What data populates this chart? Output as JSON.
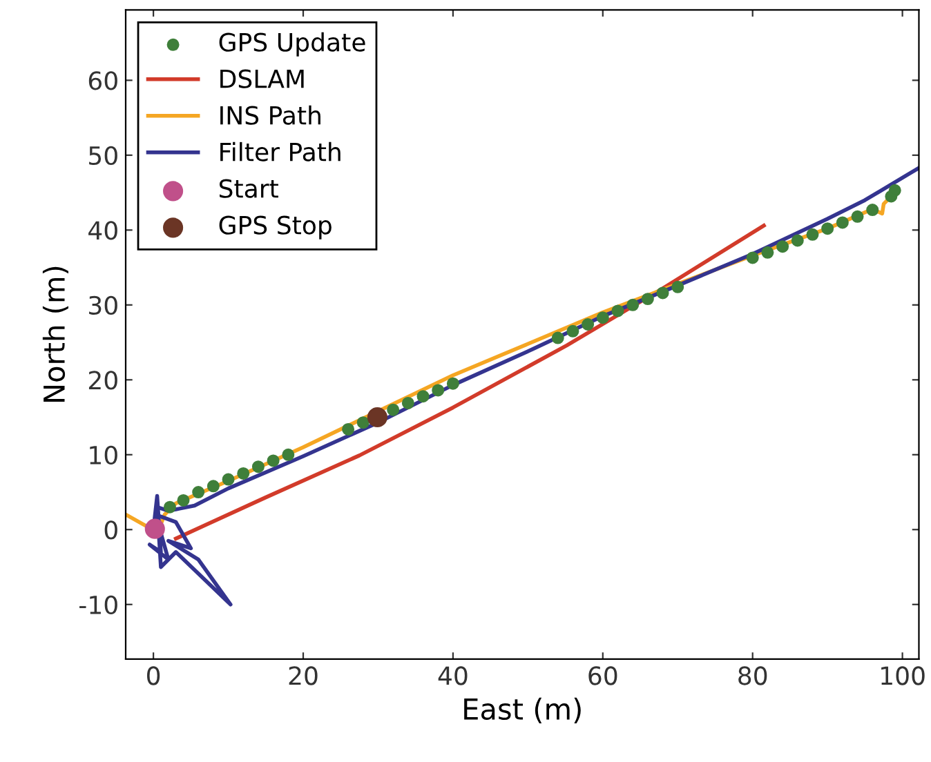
{
  "chart_data": {
    "type": "line",
    "xlabel": "East (m)",
    "ylabel": "North (m)",
    "xlim": [
      -3.7,
      102.2
    ],
    "ylim": [
      -17.3,
      69.4
    ],
    "xticks": [
      0,
      20,
      40,
      60,
      80,
      100
    ],
    "yticks": [
      -10,
      0,
      10,
      20,
      30,
      40,
      50,
      60
    ],
    "legend": "top left",
    "grid": false,
    "series": [
      {
        "name": "GPS Update",
        "type": "scatter",
        "marker": "circle",
        "color": "#3f7f3a",
        "x": [
          2.2,
          4,
          6,
          8,
          10,
          12,
          14,
          16,
          18,
          26,
          28,
          32,
          34,
          36,
          38,
          40,
          54,
          56,
          58,
          60,
          62,
          64,
          66,
          68,
          70,
          80,
          82,
          84,
          86,
          88,
          90,
          92,
          94,
          96,
          98.5,
          99
        ],
        "values": [
          3,
          3.9,
          5,
          5.8,
          6.7,
          7.5,
          8.4,
          9.2,
          10,
          13.4,
          14.3,
          16,
          16.9,
          17.8,
          18.6,
          19.5,
          25.6,
          26.5,
          27.4,
          28.3,
          29.2,
          30,
          30.8,
          31.6,
          32.4,
          36.3,
          37,
          37.8,
          38.6,
          39.4,
          40.2,
          41,
          41.8,
          42.7,
          44.5,
          45.3
        ]
      },
      {
        "name": "DSLAM",
        "color": "#d23b2a",
        "x": [
          3,
          15,
          27.5,
          40,
          55.2,
          68,
          81.5
        ],
        "values": [
          -1.2,
          4.3,
          9.9,
          16.3,
          24.6,
          32.2,
          40.6
        ]
      },
      {
        "name": "INS Path",
        "color": "#f5a623",
        "x": [
          -3.5,
          -1,
          0.5,
          1.5,
          3,
          10,
          20,
          30,
          40,
          50,
          60,
          70,
          80,
          90,
          96,
          97.3,
          97.5,
          98.5
        ],
        "values": [
          1.9,
          0.5,
          -0.5,
          2,
          3.5,
          6.5,
          11,
          15.8,
          20.6,
          24.8,
          29,
          32.8,
          36.6,
          40.2,
          42.8,
          42.2,
          43.5,
          44.5
        ]
      },
      {
        "name": "Filter Path",
        "color": "#34348f",
        "x": [
          0,
          0.5,
          1,
          -0.5,
          2,
          0.3,
          3,
          5,
          2,
          6,
          10.3,
          3,
          1,
          0.5,
          2,
          3.5,
          5.5,
          10,
          20,
          30,
          40,
          50,
          60,
          70,
          80,
          90,
          95,
          102.2
        ],
        "values": [
          0,
          4.5,
          -3,
          -2,
          -4,
          2,
          1,
          -2.5,
          -1.5,
          -4,
          -10,
          -3,
          -5,
          3,
          2.5,
          2.8,
          3.2,
          5.5,
          9.8,
          14.3,
          19.3,
          23.8,
          28.5,
          32.6,
          36.8,
          41.5,
          44,
          48.3
        ]
      },
      {
        "name": "Start",
        "type": "scatter",
        "marker": "circle",
        "color": "#c0508a",
        "x": [
          0.2
        ],
        "values": [
          0.1
        ]
      },
      {
        "name": "GPS Stop",
        "type": "scatter",
        "marker": "circle",
        "color": "#6b3525",
        "x": [
          29.9
        ],
        "values": [
          15.0
        ]
      }
    ]
  }
}
